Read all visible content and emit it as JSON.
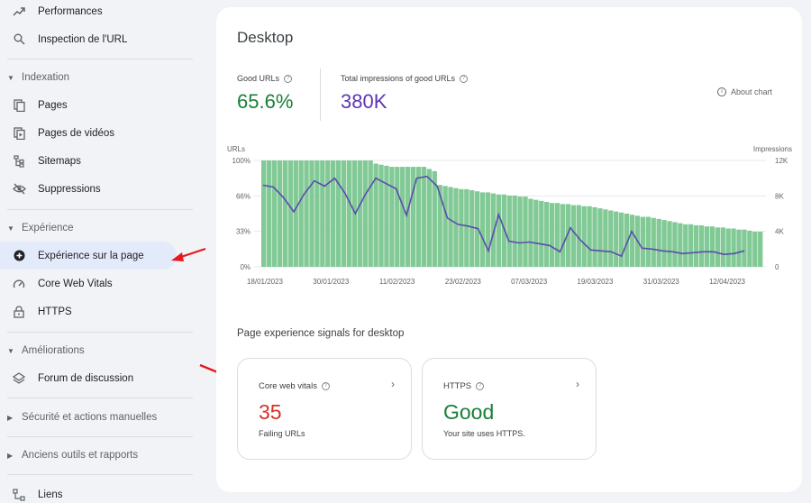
{
  "sidebar": {
    "items": [
      {
        "label": "Performances",
        "icon": "trending-up-icon"
      },
      {
        "label": "Inspection de l'URL",
        "icon": "search-icon"
      },
      {
        "label": "Pages",
        "icon": "pages-icon"
      },
      {
        "label": "Pages de vidéos",
        "icon": "video-pages-icon"
      },
      {
        "label": "Sitemaps",
        "icon": "sitemap-icon"
      },
      {
        "label": "Suppressions",
        "icon": "eye-off-icon"
      },
      {
        "label": "Expérience sur la page",
        "icon": "add-circle-icon"
      },
      {
        "label": "Core Web Vitals",
        "icon": "speedometer-icon"
      },
      {
        "label": "HTTPS",
        "icon": "lock-icon"
      },
      {
        "label": "Forum de discussion",
        "icon": "layers-icon"
      },
      {
        "label": "Liens",
        "icon": "link-icon"
      }
    ],
    "sections": {
      "indexation": "Indexation",
      "experience": "Expérience",
      "ameliorations": "Améliorations",
      "securite": "Sécurité et actions manuelles",
      "anciens": "Anciens outils et rapports"
    }
  },
  "card": {
    "title": "Desktop",
    "good_urls_label": "Good URLs",
    "good_urls_value": "65.6%",
    "impressions_label": "Total impressions of good URLs",
    "impressions_value": "380K",
    "about_chart": "About chart",
    "signals_title": "Page experience signals for desktop"
  },
  "signals": [
    {
      "title": "Core web vitals",
      "value": "35",
      "sub": "Failing URLs",
      "color": "#d93025"
    },
    {
      "title": "HTTPS",
      "value": "Good",
      "sub": "Your site uses HTTPS.",
      "color": "#188038"
    }
  ],
  "colors": {
    "good_green": "#188038",
    "impressions_purple": "#5e35b1",
    "bar_green": "#81c995",
    "line_purple": "#5c4bb0"
  },
  "chart_data": {
    "type": "bar",
    "left_axis_title": "URLs",
    "right_axis_title": "Impressions",
    "left_ticks": [
      "100%",
      "66%",
      "33%",
      "0%"
    ],
    "right_ticks": [
      "12K",
      "8K",
      "4K",
      "0"
    ],
    "x_ticks": [
      "18/01/2023",
      "30/01/2023",
      "11/02/2023",
      "23/02/2023",
      "07/03/2023",
      "19/03/2023",
      "31/03/2023",
      "12/04/2023"
    ],
    "ylim": [
      0,
      100
    ],
    "y2lim": [
      0,
      12000
    ],
    "series": [
      {
        "name": "Good URLs (%)",
        "values": [
          100,
          100,
          100,
          100,
          100,
          100,
          100,
          100,
          100,
          100,
          100,
          100,
          100,
          100,
          100,
          100,
          100,
          100,
          100,
          100,
          100,
          97,
          96,
          95,
          94,
          94,
          94,
          94,
          94,
          94,
          94,
          92,
          90,
          77,
          76,
          75,
          74,
          73,
          73,
          72,
          71,
          70,
          70,
          69,
          68,
          68,
          67,
          67,
          66,
          66,
          64,
          63,
          62,
          61,
          60,
          60,
          59,
          59,
          58,
          58,
          57,
          57,
          56,
          55,
          54,
          53,
          52,
          51,
          50,
          49,
          48,
          47,
          47,
          46,
          45,
          44,
          43,
          42,
          41,
          40,
          40,
          39,
          39,
          38,
          38,
          37,
          37,
          36,
          36,
          35,
          35,
          34,
          33,
          33
        ]
      },
      {
        "name": "Impressions",
        "values": [
          9200,
          9000,
          7800,
          6200,
          8200,
          9700,
          9100,
          10000,
          8300,
          6000,
          8200,
          10000,
          9400,
          8800,
          5800,
          10000,
          10200,
          9100,
          5500,
          4800,
          4600,
          4300,
          1800,
          5900,
          2900,
          2700,
          2800,
          2600,
          2400,
          1700,
          4400,
          3000,
          1900,
          1800,
          1700,
          1200,
          4000,
          2100,
          2000,
          1800,
          1700,
          1500,
          1600,
          1700,
          1700,
          1400,
          1500,
          1800
        ]
      }
    ]
  }
}
